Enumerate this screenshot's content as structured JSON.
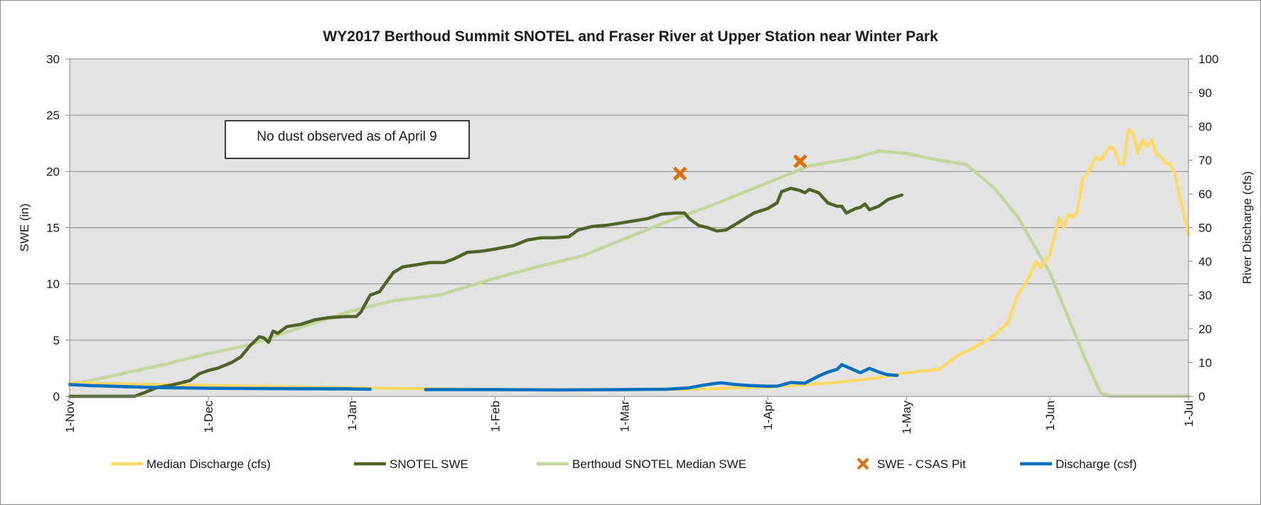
{
  "chart_data": {
    "type": "line",
    "title": "WY2017 Berthoud Summit SNOTEL and Fraser River at Upper Station near Winter Park",
    "ylabel": "SWE (in)",
    "y2label": "River Discharge (cfs)",
    "ylim": [
      0,
      30
    ],
    "y2lim": [
      0,
      100
    ],
    "yticks": [
      0,
      5,
      10,
      15,
      20,
      25,
      30
    ],
    "y2ticks": [
      0,
      10,
      20,
      30,
      40,
      50,
      60,
      70,
      80,
      90,
      100
    ],
    "xlim": [
      "2016-11-01",
      "2017-07-01"
    ],
    "xticks": [
      {
        "date": "2016-11-01",
        "label": "1-Nov"
      },
      {
        "date": "2016-12-01",
        "label": "1-Dec"
      },
      {
        "date": "2017-01-01",
        "label": "1-Jan"
      },
      {
        "date": "2017-02-01",
        "label": "1-Feb"
      },
      {
        "date": "2017-03-01",
        "label": "1-Mar"
      },
      {
        "date": "2017-04-01",
        "label": "1-Apr"
      },
      {
        "date": "2017-05-01",
        "label": "1-May"
      },
      {
        "date": "2017-06-01",
        "label": "1-Jun"
      },
      {
        "date": "2017-07-01",
        "label": "1-Jul"
      }
    ],
    "grid": true,
    "legend_position": "bottom",
    "annotation": "No dust observed as of April 9",
    "series": [
      {
        "name": "Median Discharge (cfs)",
        "axis": "right",
        "color": "#ffd966",
        "points": [
          [
            "2016-11-01",
            4
          ],
          [
            "2016-11-20",
            3.5
          ],
          [
            "2016-12-10",
            3
          ],
          [
            "2017-01-01",
            2.5
          ],
          [
            "2017-02-01",
            2
          ],
          [
            "2017-03-01",
            2
          ],
          [
            "2017-03-20",
            2.2
          ],
          [
            "2017-04-01",
            2.8
          ],
          [
            "2017-04-15",
            4
          ],
          [
            "2017-04-25",
            5.5
          ],
          [
            "2017-05-01",
            7
          ],
          [
            "2017-05-08",
            8
          ],
          [
            "2017-05-12",
            12
          ],
          [
            "2017-05-15",
            14
          ],
          [
            "2017-05-20",
            18
          ],
          [
            "2017-05-23",
            22
          ],
          [
            "2017-05-25",
            30
          ],
          [
            "2017-05-27",
            34
          ],
          [
            "2017-05-29",
            40
          ],
          [
            "2017-05-30",
            38
          ],
          [
            "2017-06-01",
            42
          ],
          [
            "2017-06-03",
            53
          ],
          [
            "2017-06-04",
            50
          ],
          [
            "2017-06-05",
            54
          ],
          [
            "2017-06-06",
            53
          ],
          [
            "2017-06-07",
            55
          ],
          [
            "2017-06-08",
            64
          ],
          [
            "2017-06-10",
            68
          ],
          [
            "2017-06-11",
            71
          ],
          [
            "2017-06-12",
            70
          ],
          [
            "2017-06-14",
            74
          ],
          [
            "2017-06-15",
            73
          ],
          [
            "2017-06-16",
            69
          ],
          [
            "2017-06-17",
            69
          ],
          [
            "2017-06-18",
            79
          ],
          [
            "2017-06-19",
            78
          ],
          [
            "2017-06-20",
            72
          ],
          [
            "2017-06-21",
            76
          ],
          [
            "2017-06-22",
            74
          ],
          [
            "2017-06-23",
            76
          ],
          [
            "2017-06-24",
            72
          ],
          [
            "2017-06-25",
            71
          ],
          [
            "2017-06-26",
            69
          ],
          [
            "2017-06-27",
            69
          ],
          [
            "2017-06-28",
            66
          ],
          [
            "2017-06-29",
            60
          ],
          [
            "2017-06-30",
            54
          ],
          [
            "2017-07-01",
            48
          ]
        ]
      },
      {
        "name": "SNOTEL SWE",
        "axis": "left",
        "color": "#4f6228",
        "points": [
          [
            "2016-11-01",
            0
          ],
          [
            "2016-11-15",
            0
          ],
          [
            "2016-11-17",
            0.3
          ],
          [
            "2016-11-20",
            0.8
          ],
          [
            "2016-11-23",
            1
          ],
          [
            "2016-11-27",
            1.4
          ],
          [
            "2016-11-29",
            2.0
          ],
          [
            "2016-12-01",
            2.3
          ],
          [
            "2016-12-03",
            2.5
          ],
          [
            "2016-12-06",
            3.0
          ],
          [
            "2016-12-08",
            3.5
          ],
          [
            "2016-12-10",
            4.5
          ],
          [
            "2016-12-12",
            5.3
          ],
          [
            "2016-12-13",
            5.2
          ],
          [
            "2016-12-14",
            4.8
          ],
          [
            "2016-12-15",
            5.8
          ],
          [
            "2016-12-16",
            5.6
          ],
          [
            "2016-12-18",
            6.2
          ],
          [
            "2016-12-21",
            6.4
          ],
          [
            "2016-12-24",
            6.8
          ],
          [
            "2016-12-27",
            7.0
          ],
          [
            "2016-12-31",
            7.1
          ],
          [
            "2017-01-02",
            7.1
          ],
          [
            "2017-01-03",
            7.5
          ],
          [
            "2017-01-05",
            9.0
          ],
          [
            "2017-01-07",
            9.3
          ],
          [
            "2017-01-10",
            11.0
          ],
          [
            "2017-01-12",
            11.5
          ],
          [
            "2017-01-15",
            11.7
          ],
          [
            "2017-01-18",
            11.9
          ],
          [
            "2017-01-21",
            11.9
          ],
          [
            "2017-01-23",
            12.2
          ],
          [
            "2017-01-26",
            12.8
          ],
          [
            "2017-01-29",
            12.9
          ],
          [
            "2017-02-01",
            13.1
          ],
          [
            "2017-02-05",
            13.4
          ],
          [
            "2017-02-08",
            13.9
          ],
          [
            "2017-02-11",
            14.1
          ],
          [
            "2017-02-14",
            14.1
          ],
          [
            "2017-02-17",
            14.2
          ],
          [
            "2017-02-19",
            14.8
          ],
          [
            "2017-02-22",
            15.1
          ],
          [
            "2017-02-25",
            15.2
          ],
          [
            "2017-02-28",
            15.4
          ],
          [
            "2017-03-03",
            15.6
          ],
          [
            "2017-03-06",
            15.8
          ],
          [
            "2017-03-09",
            16.2
          ],
          [
            "2017-03-12",
            16.3
          ],
          [
            "2017-03-14",
            16.3
          ],
          [
            "2017-03-15",
            15.8
          ],
          [
            "2017-03-17",
            15.2
          ],
          [
            "2017-03-19",
            15.0
          ],
          [
            "2017-03-21",
            14.7
          ],
          [
            "2017-03-23",
            14.8
          ],
          [
            "2017-03-25",
            15.3
          ],
          [
            "2017-03-27",
            15.8
          ],
          [
            "2017-03-29",
            16.3
          ],
          [
            "2017-04-01",
            16.7
          ],
          [
            "2017-04-03",
            17.2
          ],
          [
            "2017-04-04",
            18.2
          ],
          [
            "2017-04-06",
            18.5
          ],
          [
            "2017-04-08",
            18.3
          ],
          [
            "2017-04-09",
            18.1
          ],
          [
            "2017-04-10",
            18.4
          ],
          [
            "2017-04-12",
            18.1
          ],
          [
            "2017-04-14",
            17.2
          ],
          [
            "2017-04-16",
            16.9
          ],
          [
            "2017-04-17",
            16.9
          ],
          [
            "2017-04-18",
            16.3
          ],
          [
            "2017-04-20",
            16.7
          ],
          [
            "2017-04-21",
            16.8
          ],
          [
            "2017-04-22",
            17.1
          ],
          [
            "2017-04-23",
            16.6
          ],
          [
            "2017-04-25",
            16.9
          ],
          [
            "2017-04-27",
            17.5
          ],
          [
            "2017-04-30",
            17.9
          ]
        ]
      },
      {
        "name": "Berthoud SNOTEL Median SWE",
        "axis": "left",
        "color": "#c3d69b",
        "points": [
          [
            "2016-11-01",
            1.0
          ],
          [
            "2016-11-10",
            1.8
          ],
          [
            "2016-11-20",
            2.7
          ],
          [
            "2016-12-01",
            3.8
          ],
          [
            "2016-12-10",
            4.6
          ],
          [
            "2016-12-20",
            6.0
          ],
          [
            "2017-01-01",
            7.6
          ],
          [
            "2017-01-10",
            8.5
          ],
          [
            "2017-01-20",
            9.0
          ],
          [
            "2017-02-01",
            10.5
          ],
          [
            "2017-02-10",
            11.5
          ],
          [
            "2017-02-20",
            12.5
          ],
          [
            "2017-03-01",
            14.0
          ],
          [
            "2017-03-10",
            15.5
          ],
          [
            "2017-03-20",
            17.0
          ],
          [
            "2017-04-01",
            19.0
          ],
          [
            "2017-04-10",
            20.5
          ],
          [
            "2017-04-20",
            21.2
          ],
          [
            "2017-04-25",
            21.8
          ],
          [
            "2017-05-01",
            21.6
          ],
          [
            "2017-05-08",
            21.0
          ],
          [
            "2017-05-14",
            20.6
          ],
          [
            "2017-05-20",
            18.5
          ],
          [
            "2017-05-25",
            16.0
          ],
          [
            "2017-06-01",
            11.0
          ],
          [
            "2017-06-05",
            7.0
          ],
          [
            "2017-06-09",
            3.0
          ],
          [
            "2017-06-12",
            0.3
          ],
          [
            "2017-06-14",
            0
          ],
          [
            "2017-07-01",
            0
          ]
        ]
      },
      {
        "name": "SWE - CSAS Pit",
        "axis": "left",
        "color": "#e36c09",
        "marker": "x",
        "points": [
          [
            "2017-03-13",
            19.8
          ],
          [
            "2017-04-08",
            20.9
          ]
        ]
      },
      {
        "name": "Discharge (csf)",
        "axis": "right",
        "color": "#0070c0",
        "points": [
          [
            "2016-11-01",
            3.5
          ],
          [
            "2016-11-05",
            3.2
          ],
          [
            "2016-11-10",
            3.0
          ],
          [
            "2016-11-15",
            2.8
          ],
          [
            "2016-11-20",
            2.6
          ],
          [
            "2016-12-01",
            2.4
          ],
          [
            "2016-12-15",
            2.3
          ],
          [
            "2016-12-31",
            2.2
          ],
          [
            "2017-01-05",
            2.1
          ],
          null,
          [
            "2017-01-17",
            2.0
          ],
          [
            "2017-02-01",
            2.0
          ],
          [
            "2017-02-15",
            1.9
          ],
          [
            "2017-03-01",
            2.0
          ],
          [
            "2017-03-10",
            2.1
          ],
          [
            "2017-03-15",
            2.5
          ],
          [
            "2017-03-18",
            3.3
          ],
          [
            "2017-03-20",
            3.7
          ],
          [
            "2017-03-22",
            4.0
          ],
          [
            "2017-03-25",
            3.5
          ],
          [
            "2017-03-28",
            3.2
          ],
          [
            "2017-04-01",
            3.0
          ],
          [
            "2017-04-03",
            3.0
          ],
          [
            "2017-04-06",
            4.1
          ],
          [
            "2017-04-09",
            3.9
          ],
          [
            "2017-04-12",
            6.0
          ],
          [
            "2017-04-14",
            7.2
          ],
          [
            "2017-04-16",
            8.0
          ],
          [
            "2017-04-17",
            9.4
          ],
          [
            "2017-04-19",
            8.2
          ],
          [
            "2017-04-21",
            7.0
          ],
          [
            "2017-04-23",
            8.3
          ],
          [
            "2017-04-25",
            7.2
          ],
          [
            "2017-04-27",
            6.4
          ],
          [
            "2017-04-29",
            6.2
          ]
        ]
      }
    ]
  }
}
